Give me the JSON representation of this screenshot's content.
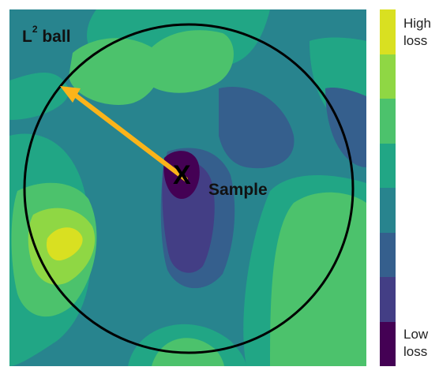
{
  "labels": {
    "ball_main": "L",
    "ball_sup": "2",
    "ball_rest": " ball",
    "sample": "Sample",
    "marker": "X"
  },
  "colorbar": {
    "high_line1": "High",
    "high_line2": "loss",
    "low_line1": "Low",
    "low_line2": "loss",
    "colors_top_to_bottom": [
      "#d9e021",
      "#8fd744",
      "#4cc26c",
      "#21a685",
      "#28848e",
      "#355f8d",
      "#433e85",
      "#440154"
    ]
  },
  "colors": {
    "circle": "#000000",
    "arrow": "#fbb41a"
  }
}
